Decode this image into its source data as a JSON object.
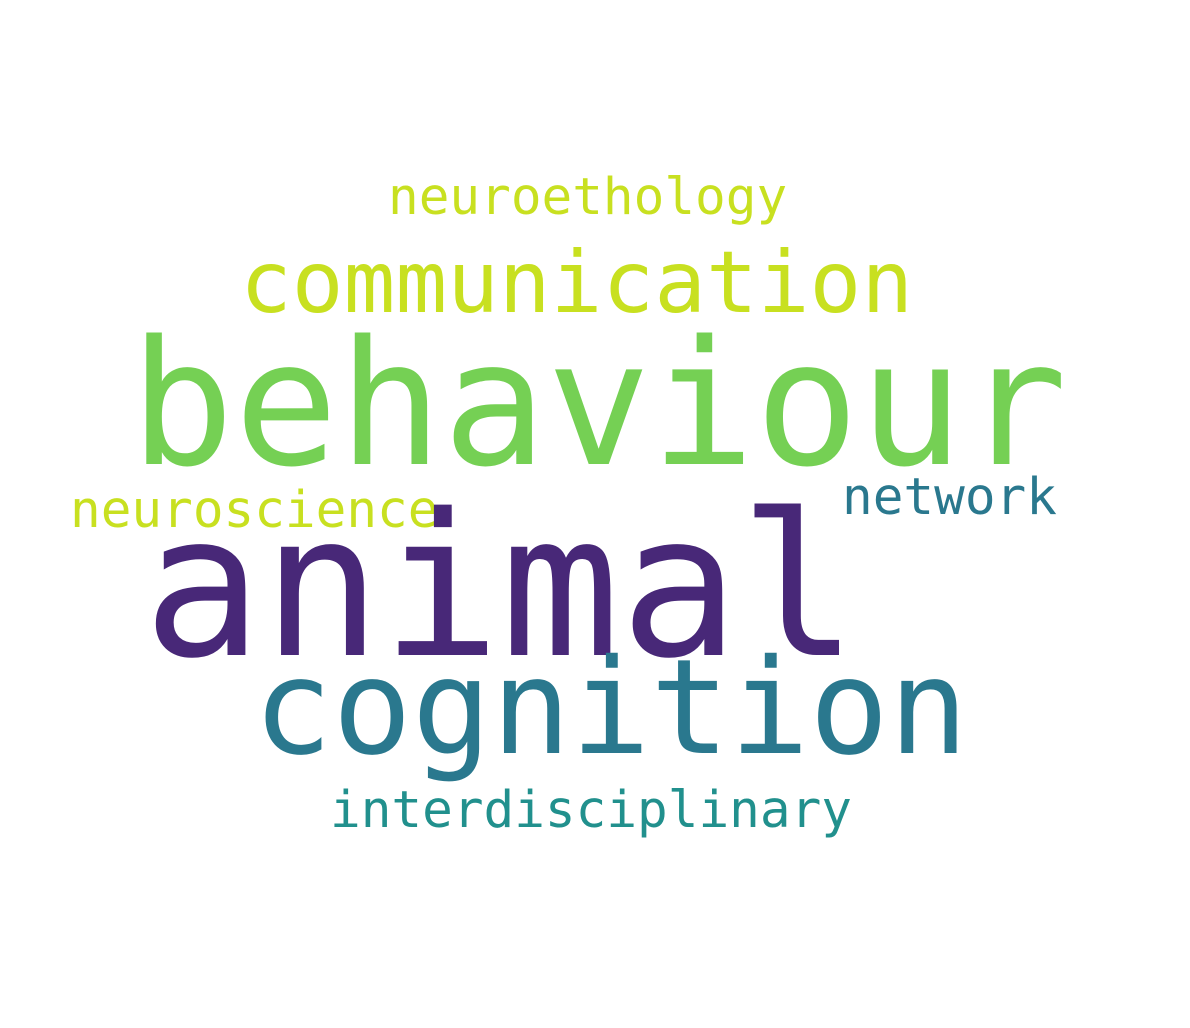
{
  "words": [
    {
      "id": "neuroethology",
      "text": "neuroethology",
      "color": "#c8e020"
    },
    {
      "id": "communication",
      "text": "communication",
      "color": "#c8e020"
    },
    {
      "id": "behaviour",
      "text": "behaviour",
      "color": "#75d054"
    },
    {
      "id": "network",
      "text": "network",
      "color": "#2a788e"
    },
    {
      "id": "neuroscience",
      "text": "neuroscience",
      "color": "#c8e020"
    },
    {
      "id": "animal",
      "text": "animal",
      "color": "#482878"
    },
    {
      "id": "cognition",
      "text": "cognition",
      "color": "#2a788e"
    },
    {
      "id": "interdisciplinary",
      "text": "interdisciplinary",
      "color": "#21908d"
    }
  ]
}
